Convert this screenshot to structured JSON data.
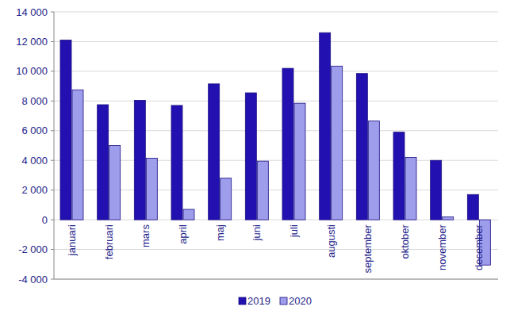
{
  "chart_data": {
    "type": "bar",
    "categories": [
      "januari",
      "februari",
      "mars",
      "april",
      "maj",
      "juni",
      "juli",
      "augusti",
      "september",
      "oktober",
      "november",
      "december"
    ],
    "series": [
      {
        "name": "2019",
        "color": "#2210b0",
        "values": [
          12100,
          7750,
          8050,
          7700,
          9150,
          8550,
          10200,
          12600,
          9850,
          5900,
          4000,
          1700
        ]
      },
      {
        "name": "2020",
        "color": "#9d9dec",
        "values": [
          8750,
          5000,
          4150,
          700,
          2800,
          3950,
          7850,
          10350,
          6650,
          4200,
          200,
          -3050
        ]
      }
    ],
    "ylim": [
      -4000,
      14000
    ],
    "yticks": [
      {
        "value": -4000,
        "label": "-4 000"
      },
      {
        "value": -2000,
        "label": "-2 000"
      },
      0,
      {
        "value": 2000,
        "label": "2 000"
      },
      {
        "value": 4000,
        "label": "4 000"
      },
      {
        "value": 6000,
        "label": "6 000"
      },
      {
        "value": 8000,
        "label": "8 000"
      },
      {
        "value": 10000,
        "label": "10 000"
      },
      {
        "value": 12000,
        "label": "12 000"
      },
      {
        "value": 14000,
        "label": "14 000"
      }
    ],
    "grid": true,
    "legend": "bottom"
  }
}
